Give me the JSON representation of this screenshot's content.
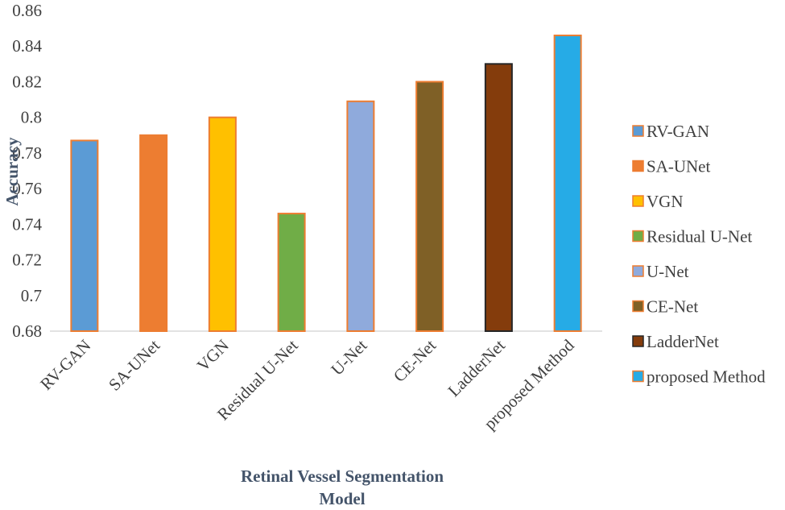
{
  "chart_data": {
    "type": "bar",
    "title": "",
    "xlabel": "Retinal Vessel Segmentation Model",
    "xlabel_lines": [
      "Retinal Vessel Segmentation",
      "Model"
    ],
    "ylabel": "Accuracy",
    "ylim": [
      0.68,
      0.86
    ],
    "yticks": [
      "0.68",
      "0.7",
      "0.72",
      "0.74",
      "0.76",
      "0.78",
      "0.8",
      "0.82",
      "0.84",
      "0.86"
    ],
    "categories": [
      "RV-GAN",
      "SA-UNet",
      "VGN",
      "Residual U-Net",
      "U-Net",
      "CE-Net",
      "LadderNet",
      "proposed Method"
    ],
    "values": [
      0.787,
      0.79,
      0.8,
      0.746,
      0.809,
      0.82,
      0.83,
      0.846
    ],
    "colors": [
      "#5b9bd5",
      "#ed7d31",
      "#ffc000",
      "#70ad47",
      "#8faadc",
      "#7f6026",
      "#843c0c",
      "#26abe6"
    ],
    "edge_colors": [
      "#ed7d31",
      "#ed7d31",
      "#ed7d31",
      "#ed7d31",
      "#ed7d31",
      "#ed7d31",
      "#262626",
      "#ed7d31"
    ],
    "legend": {
      "position": "right",
      "entries": [
        "RV-GAN",
        "SA-UNet",
        "VGN",
        "Residual U-Net",
        "U-Net",
        "CE-Net",
        "LadderNet",
        "proposed Method"
      ]
    },
    "grid": false
  }
}
